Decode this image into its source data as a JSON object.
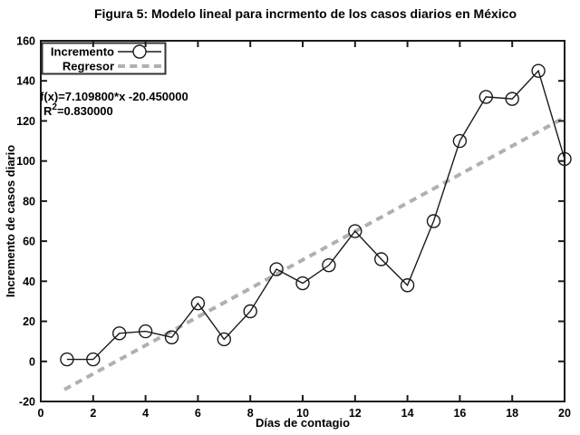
{
  "figure": {
    "title": "Figura 5: Modelo lineal para incrmento de los casos diarios en México"
  },
  "chart_data": {
    "type": "line",
    "title": "Figura 5: Modelo lineal para incrmento de los casos diarios en México",
    "xlabel": "Días de contagio",
    "ylabel": "Incremento de casos diario",
    "xlim": [
      0,
      20
    ],
    "ylim": [
      -20,
      160
    ],
    "x_ticks": [
      0,
      2,
      4,
      6,
      8,
      10,
      12,
      14,
      16,
      18,
      20
    ],
    "y_ticks": [
      -20,
      0,
      20,
      40,
      60,
      80,
      100,
      120,
      140,
      160
    ],
    "grid": false,
    "legend_position": "top-left",
    "x": [
      1,
      2,
      3,
      4,
      5,
      6,
      7,
      8,
      9,
      10,
      11,
      12,
      13,
      14,
      15,
      16,
      17,
      18,
      19,
      20
    ],
    "series": [
      {
        "name": "Incremento",
        "style": "solid-line-open-circle-markers",
        "color": "#1a1a1a",
        "values": [
          1,
          1,
          14,
          15,
          12,
          29,
          11,
          25,
          46,
          39,
          48,
          65,
          51,
          38,
          70,
          110,
          132,
          131,
          145,
          101
        ]
      },
      {
        "name": "Regresor",
        "style": "dashed-line",
        "color": "#b0b0b0",
        "slope": 7.1098,
        "intercept": -20.45,
        "x_start": 0.9,
        "x_end": 20
      }
    ],
    "annotation": {
      "fx_label": "f(x)=7.109800*x -20.450000",
      "r2_base": "R",
      "r2_sup": "2",
      "r2_rest": "=0.830000"
    }
  },
  "colors": {
    "background": "#ffffff",
    "axis": "#1a1a1a",
    "data_line": "#1a1a1a",
    "regressor_line": "#b0b0b0",
    "text": "#000000"
  }
}
